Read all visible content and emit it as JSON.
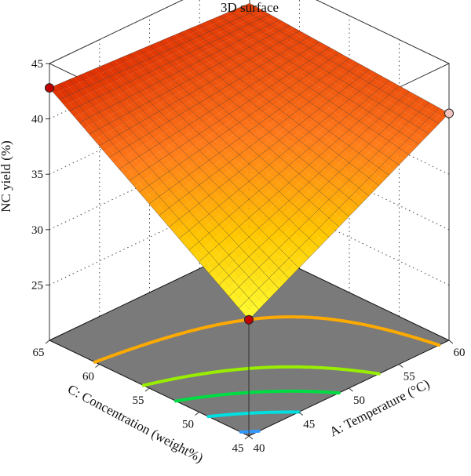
{
  "chart_data": {
    "type": "surface",
    "title": "3D surface",
    "zlabel": "NC yield (%)",
    "xlabel": "A: Temperature (°C)",
    "ylabel": "C: Concentration (weight%)",
    "xlim": [
      40,
      60
    ],
    "ylim": [
      45,
      65
    ],
    "zlim": [
      20,
      45
    ],
    "x_ticks": [
      "40",
      "45",
      "50",
      "55",
      "60"
    ],
    "y_ticks": [
      "45",
      "50",
      "55",
      "60",
      "65"
    ],
    "z_ticks": [
      "25",
      "30",
      "35",
      "40",
      "45"
    ],
    "surface_corners": [
      {
        "temperature": 40,
        "concentration": 45,
        "yield": 30.5
      },
      {
        "temperature": 60,
        "concentration": 45,
        "yield": 40.5
      },
      {
        "temperature": 40,
        "concentration": 65,
        "yield": 42.8
      },
      {
        "temperature": 60,
        "concentration": 65,
        "yield": 41.8
      }
    ],
    "design_points": [
      {
        "temperature": 40,
        "concentration": 65,
        "yield": 42.8,
        "color": "#c00000"
      },
      {
        "temperature": 40,
        "concentration": 45,
        "yield": 30.5,
        "color": "#c00000"
      },
      {
        "temperature": 60,
        "concentration": 45,
        "yield": 40.5,
        "color": "#f4c4c0"
      }
    ],
    "contours": [
      {
        "level": 31,
        "color": "#3399ff"
      },
      {
        "level": 33,
        "color": "#00e0e0"
      },
      {
        "level": 35,
        "color": "#00dd44"
      },
      {
        "level": 37,
        "color": "#99ee00"
      },
      {
        "level": 40,
        "color": "#ffaa00"
      }
    ],
    "colormap": [
      "#ffff33",
      "#ffc800",
      "#ff7a1a",
      "#dd2b00"
    ],
    "floor_color": "#7a7a7a",
    "grid": true
  }
}
